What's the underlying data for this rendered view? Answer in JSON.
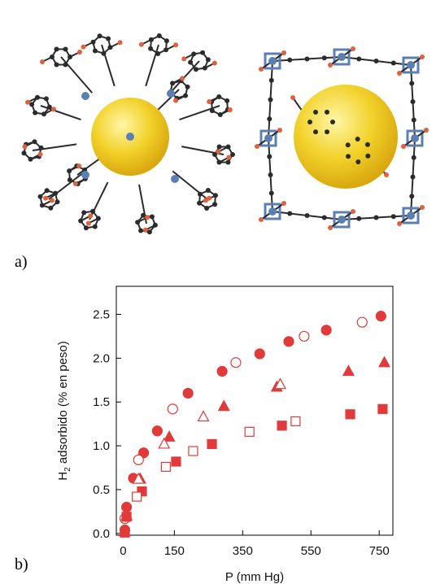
{
  "figure": {
    "panel_a_label": "a)",
    "panel_b_label": "b)"
  },
  "structures": {
    "left_icon": "mof-cage-structure-icon",
    "right_icon": "mof-cube-structure-icon",
    "colors": {
      "carbon": "#2b2b2b",
      "oxygen": "#e0623c",
      "metal": "#5b7fb5",
      "pore_sphere": "#f2d22a"
    }
  },
  "chart_data": {
    "type": "scatter",
    "xlabel": "P (mm Hg)",
    "ylabel_main": "H",
    "ylabel_sub": "2",
    "ylabel_rest": " adsorbido (% en peso)",
    "xlim": [
      -20,
      790
    ],
    "ylim": [
      -0.02,
      2.82
    ],
    "xticks": [
      0,
      150,
      350,
      550,
      750
    ],
    "yticks": [
      0.0,
      0.5,
      1.0,
      1.5,
      2.0,
      2.5
    ],
    "ytick_labels": [
      "0.0",
      "0.5",
      "1.0",
      "1.5",
      "2.0",
      "2.5"
    ],
    "color": "#e03a3a",
    "series": [
      {
        "marker": "circle",
        "filled": true,
        "points": [
          [
            5,
            0.04
          ],
          [
            10,
            0.3
          ],
          [
            30,
            0.63
          ],
          [
            60,
            0.92
          ],
          [
            100,
            1.17
          ],
          [
            190,
            1.6
          ],
          [
            290,
            1.85
          ],
          [
            400,
            2.05
          ],
          [
            485,
            2.19
          ],
          [
            595,
            2.32
          ],
          [
            755,
            2.48
          ]
        ]
      },
      {
        "marker": "circle",
        "filled": false,
        "points": [
          [
            5,
            0.17
          ],
          [
            45,
            0.84
          ],
          [
            145,
            1.42
          ],
          [
            330,
            1.95
          ],
          [
            530,
            2.25
          ],
          [
            700,
            2.41
          ]
        ]
      },
      {
        "marker": "triangle",
        "filled": true,
        "points": [
          [
            5,
            0.02
          ],
          [
            10,
            0.2
          ],
          [
            50,
            0.62
          ],
          [
            135,
            1.1
          ],
          [
            295,
            1.45
          ],
          [
            450,
            1.67
          ],
          [
            660,
            1.85
          ],
          [
            765,
            1.95
          ]
        ]
      },
      {
        "marker": "triangle",
        "filled": false,
        "points": [
          [
            45,
            0.62
          ],
          [
            120,
            1.02
          ],
          [
            235,
            1.33
          ],
          [
            460,
            1.7
          ]
        ]
      },
      {
        "marker": "square",
        "filled": true,
        "points": [
          [
            5,
            0.01
          ],
          [
            10,
            0.19
          ],
          [
            55,
            0.48
          ],
          [
            155,
            0.82
          ],
          [
            260,
            1.02
          ],
          [
            465,
            1.23
          ],
          [
            665,
            1.36
          ],
          [
            760,
            1.42
          ]
        ]
      },
      {
        "marker": "square",
        "filled": false,
        "points": [
          [
            40,
            0.42
          ],
          [
            125,
            0.76
          ],
          [
            205,
            0.94
          ],
          [
            370,
            1.16
          ],
          [
            505,
            1.28
          ]
        ]
      }
    ]
  }
}
